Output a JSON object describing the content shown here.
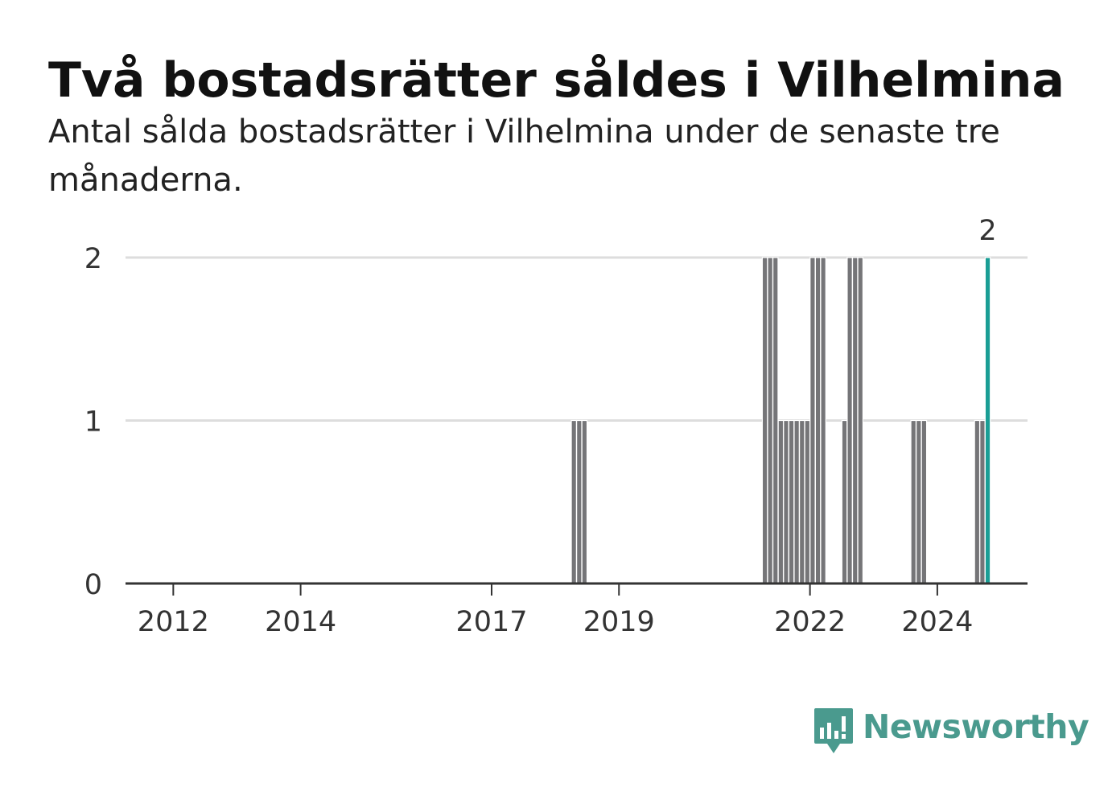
{
  "header": {
    "title": "Två bostadsrätter såldes i Vilhelmina",
    "subtitle": "Antal sålda bostadsrätter i Vilhelmina under de senaste tre månaderna."
  },
  "branding": {
    "logo_text": "Newsworthy",
    "logo_icon": "bar-chart-speech-bubble-icon",
    "logo_color": "#4a9a8e"
  },
  "colors": {
    "bar": "#757578",
    "highlight": "#1a9e95",
    "grid": "#dddddd",
    "axis": "#333333"
  },
  "chart_data": {
    "type": "bar",
    "title": "Två bostadsrätter såldes i Vilhelmina",
    "xlabel": "",
    "ylabel": "",
    "x_axis": "date (monthly, three-month rolling)",
    "ylim": [
      0,
      2
    ],
    "y_ticks": [
      0,
      1,
      2
    ],
    "x_ticks": [
      2012,
      2014,
      2017,
      2019,
      2022,
      2024
    ],
    "xlim": [
      "2011-04",
      "2025-06"
    ],
    "grid": true,
    "annotation": {
      "date": "2024-10",
      "value": 2,
      "text": "2"
    },
    "highlight_date": "2024-10",
    "data": [
      {
        "date": "2018-04",
        "value": 1
      },
      {
        "date": "2018-05",
        "value": 1
      },
      {
        "date": "2018-06",
        "value": 1
      },
      {
        "date": "2021-04",
        "value": 2
      },
      {
        "date": "2021-05",
        "value": 2
      },
      {
        "date": "2021-06",
        "value": 2
      },
      {
        "date": "2021-07",
        "value": 1
      },
      {
        "date": "2021-08",
        "value": 1
      },
      {
        "date": "2021-09",
        "value": 1
      },
      {
        "date": "2021-10",
        "value": 1
      },
      {
        "date": "2021-11",
        "value": 1
      },
      {
        "date": "2021-12",
        "value": 1
      },
      {
        "date": "2022-01",
        "value": 2
      },
      {
        "date": "2022-02",
        "value": 2
      },
      {
        "date": "2022-03",
        "value": 2
      },
      {
        "date": "2022-07",
        "value": 1
      },
      {
        "date": "2022-08",
        "value": 2
      },
      {
        "date": "2022-09",
        "value": 2
      },
      {
        "date": "2022-10",
        "value": 2
      },
      {
        "date": "2023-08",
        "value": 1
      },
      {
        "date": "2023-09",
        "value": 1
      },
      {
        "date": "2023-10",
        "value": 1
      },
      {
        "date": "2024-08",
        "value": 1
      },
      {
        "date": "2024-09",
        "value": 1
      },
      {
        "date": "2024-10",
        "value": 2
      }
    ]
  }
}
